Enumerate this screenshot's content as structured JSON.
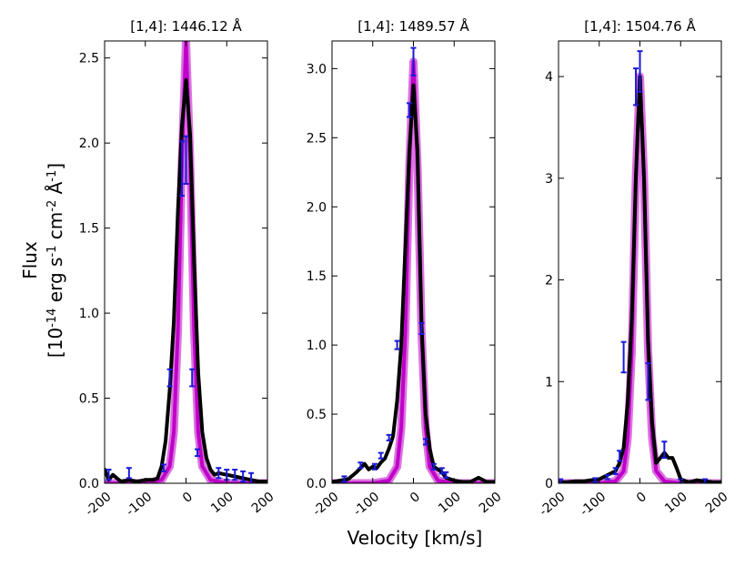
{
  "figure": {
    "xlabel": "Velocity [km/s]",
    "ylabel_line1": "Flux",
    "ylabel_base": "[10",
    "ylabel_exp1": "-14",
    "ylabel_mid1": " erg s",
    "ylabel_exp2": "-1",
    "ylabel_mid2": " cm",
    "ylabel_exp3": "-2",
    "ylabel_mid3": " Å",
    "ylabel_exp4": "-1",
    "ylabel_end": "]"
  },
  "colors": {
    "observed": "#000000",
    "model": "#c000c8",
    "errorbars": "#1a1ad8"
  },
  "chart_data": [
    {
      "type": "line",
      "title": "[1,4]: 1446.12 Å",
      "xlim": [
        -200,
        200
      ],
      "ylim": [
        0,
        2.6
      ],
      "xticks": [
        -200,
        -100,
        0,
        100,
        200
      ],
      "xtick_labels": [
        "-200",
        "-100",
        "0",
        "100",
        "200"
      ],
      "yticks": [
        0,
        0.5,
        1.0,
        1.5,
        2.0,
        2.5
      ],
      "ytick_labels": [
        "0.0",
        "0.5",
        "1.0",
        "1.5",
        "2.0",
        "2.5"
      ],
      "series": [
        {
          "name": "observed",
          "x": [
            -200,
            -190,
            -180,
            -160,
            -140,
            -120,
            -100,
            -80,
            -70,
            -60,
            -50,
            -40,
            -30,
            -20,
            -10,
            0,
            10,
            20,
            30,
            40,
            50,
            60,
            70,
            80,
            100,
            120,
            140,
            160,
            180,
            200
          ],
          "y": [
            0.08,
            0.02,
            0.05,
            0.01,
            0.02,
            0.01,
            0.02,
            0.02,
            0.03,
            0.1,
            0.25,
            0.55,
            0.95,
            1.6,
            2.1,
            2.37,
            2.05,
            1.3,
            0.65,
            0.3,
            0.15,
            0.08,
            0.05,
            0.06,
            0.05,
            0.04,
            0.03,
            0.02,
            0.01,
            0.01
          ]
        },
        {
          "name": "model",
          "x": [
            -200,
            -100,
            -60,
            -40,
            -30,
            -20,
            -10,
            0,
            10,
            20,
            30,
            40,
            60,
            100,
            200
          ],
          "y": [
            0,
            0,
            0.02,
            0.1,
            0.3,
            0.9,
            1.9,
            2.6,
            1.9,
            0.9,
            0.3,
            0.1,
            0.02,
            0,
            0
          ]
        }
      ],
      "errorbars": [
        {
          "x": -190,
          "y": 0.05,
          "err": 0.03
        },
        {
          "x": -140,
          "y": 0.06,
          "err": 0.03
        },
        {
          "x": -55,
          "y": 0.09,
          "err": 0.02
        },
        {
          "x": -40,
          "y": 0.62,
          "err": 0.05
        },
        {
          "x": -10,
          "y": 1.85,
          "err": 0.16
        },
        {
          "x": 0,
          "y": 1.9,
          "err": 0.14
        },
        {
          "x": 15,
          "y": 0.62,
          "err": 0.05
        },
        {
          "x": 28,
          "y": 0.18,
          "err": 0.02
        },
        {
          "x": 80,
          "y": 0.06,
          "err": 0.03
        },
        {
          "x": 100,
          "y": 0.05,
          "err": 0.03
        },
        {
          "x": 120,
          "y": 0.05,
          "err": 0.03
        },
        {
          "x": 140,
          "y": 0.04,
          "err": 0.03
        },
        {
          "x": 160,
          "y": 0.03,
          "err": 0.03
        }
      ]
    },
    {
      "type": "line",
      "title": "[1,4]: 1489.57 Å",
      "xlim": [
        -200,
        200
      ],
      "ylim": [
        0,
        3.2
      ],
      "xticks": [
        -200,
        -100,
        0,
        100,
        200
      ],
      "xtick_labels": [
        "-200",
        "-100",
        "0",
        "100",
        "200"
      ],
      "yticks": [
        0,
        0.5,
        1.0,
        1.5,
        2.0,
        2.5,
        3.0
      ],
      "ytick_labels": [
        "0.0",
        "0.5",
        "1.0",
        "1.5",
        "2.0",
        "2.5",
        "3.0"
      ],
      "series": [
        {
          "name": "observed",
          "x": [
            -200,
            -180,
            -160,
            -140,
            -120,
            -110,
            -100,
            -90,
            -80,
            -70,
            -60,
            -50,
            -40,
            -30,
            -20,
            -10,
            0,
            10,
            20,
            30,
            40,
            50,
            60,
            70,
            80,
            100,
            120,
            140,
            160,
            180,
            200
          ],
          "y": [
            0.01,
            0.02,
            0.03,
            0.08,
            0.14,
            0.1,
            0.12,
            0.11,
            0.15,
            0.18,
            0.25,
            0.34,
            0.6,
            1.0,
            1.7,
            2.4,
            2.88,
            2.4,
            1.15,
            0.5,
            0.25,
            0.12,
            0.1,
            0.08,
            0.04,
            0.02,
            0.01,
            0.01,
            0.04,
            0.01,
            0.01
          ]
        },
        {
          "name": "model",
          "x": [
            -200,
            -100,
            -60,
            -40,
            -30,
            -20,
            -10,
            0,
            10,
            20,
            30,
            40,
            60,
            100,
            200
          ],
          "y": [
            0,
            0,
            0.02,
            0.12,
            0.4,
            1.1,
            2.3,
            3.05,
            2.3,
            1.1,
            0.4,
            0.12,
            0.02,
            0,
            0
          ]
        }
      ],
      "errorbars": [
        {
          "x": -170,
          "y": 0.03,
          "err": 0.02
        },
        {
          "x": -130,
          "y": 0.13,
          "err": 0.02
        },
        {
          "x": -95,
          "y": 0.12,
          "err": 0.02
        },
        {
          "x": -80,
          "y": 0.2,
          "err": 0.02
        },
        {
          "x": -60,
          "y": 0.33,
          "err": 0.02
        },
        {
          "x": -40,
          "y": 1.0,
          "err": 0.03
        },
        {
          "x": -10,
          "y": 2.7,
          "err": 0.05
        },
        {
          "x": 0,
          "y": 3.05,
          "err": 0.1
        },
        {
          "x": 20,
          "y": 1.12,
          "err": 0.04
        },
        {
          "x": 30,
          "y": 0.3,
          "err": 0.02
        },
        {
          "x": 50,
          "y": 0.12,
          "err": 0.02
        },
        {
          "x": 70,
          "y": 0.09,
          "err": 0.02
        },
        {
          "x": 80,
          "y": 0.06,
          "err": 0.02
        }
      ]
    },
    {
      "type": "line",
      "title": "[1,4]: 1504.76 Å",
      "xlim": [
        -200,
        200
      ],
      "ylim": [
        0,
        4.35
      ],
      "xticks": [
        -200,
        -100,
        0,
        100,
        200
      ],
      "xtick_labels": [
        "-200",
        "-100",
        "0",
        "100",
        "200"
      ],
      "yticks": [
        0,
        1,
        2,
        3,
        4
      ],
      "ytick_labels": [
        "0",
        "1",
        "2",
        "3",
        "4"
      ],
      "series": [
        {
          "name": "observed",
          "x": [
            -200,
            -180,
            -160,
            -140,
            -120,
            -100,
            -80,
            -70,
            -60,
            -50,
            -40,
            -30,
            -20,
            -10,
            0,
            10,
            20,
            30,
            40,
            50,
            60,
            70,
            80,
            90,
            100,
            120,
            140,
            160,
            180,
            200
          ],
          "y": [
            0.01,
            0.01,
            0.02,
            0.02,
            0.03,
            0.04,
            0.08,
            0.1,
            0.12,
            0.2,
            0.35,
            0.8,
            1.6,
            3.0,
            4.0,
            3.0,
            1.4,
            0.6,
            0.2,
            0.25,
            0.3,
            0.25,
            0.25,
            0.15,
            0.04,
            0.01,
            0.03,
            0.02,
            0.01,
            0.01
          ]
        },
        {
          "name": "model",
          "x": [
            -200,
            -100,
            -60,
            -40,
            -30,
            -20,
            -10,
            0,
            10,
            20,
            30,
            40,
            60,
            100,
            200
          ],
          "y": [
            0,
            0,
            0.02,
            0.12,
            0.45,
            1.3,
            3.0,
            4.0,
            3.0,
            1.3,
            0.45,
            0.12,
            0.02,
            0,
            0
          ]
        }
      ],
      "errorbars": [
        {
          "x": -195,
          "y": 0.02,
          "err": 0.02
        },
        {
          "x": -110,
          "y": 0.03,
          "err": 0.02
        },
        {
          "x": -80,
          "y": 0.06,
          "err": 0.02
        },
        {
          "x": -60,
          "y": 0.12,
          "err": 0.03
        },
        {
          "x": -50,
          "y": 0.27,
          "err": 0.05
        },
        {
          "x": -40,
          "y": 1.24,
          "err": 0.15
        },
        {
          "x": -10,
          "y": 3.9,
          "err": 0.18
        },
        {
          "x": 0,
          "y": 4.05,
          "err": 0.2
        },
        {
          "x": 20,
          "y": 1.0,
          "err": 0.18
        },
        {
          "x": 60,
          "y": 0.33,
          "err": 0.08
        },
        {
          "x": 100,
          "y": 0.02,
          "err": 0.02
        },
        {
          "x": 160,
          "y": 0.02,
          "err": 0.02
        }
      ]
    }
  ]
}
